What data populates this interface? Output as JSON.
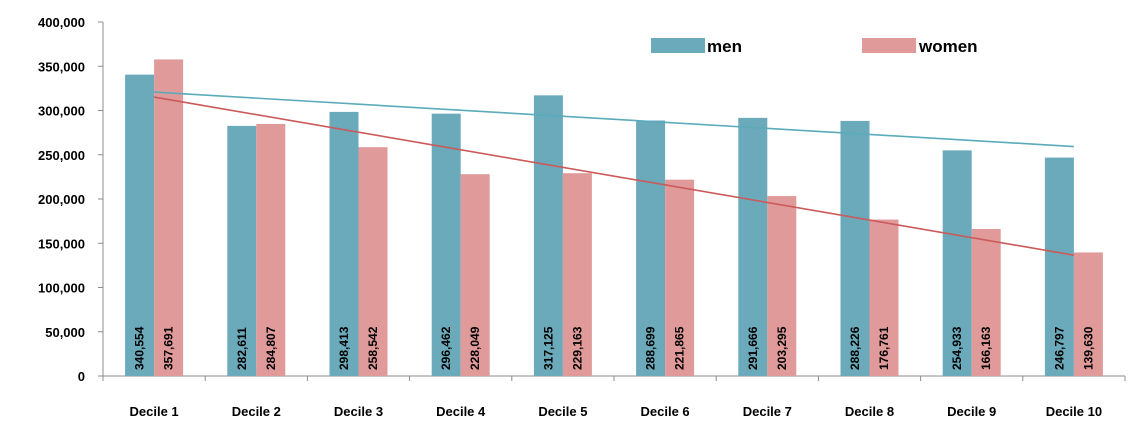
{
  "chart_data": {
    "type": "bar",
    "categories": [
      "Decile 1",
      "Decile 2",
      "Decile 3",
      "Decile 4",
      "Decile 5",
      "Decile 6",
      "Decile 7",
      "Decile 8",
      "Decile 9",
      "Decile 10"
    ],
    "series": [
      {
        "name": "men",
        "color": "#6aaabb",
        "values": [
          340554,
          282611,
          298413,
          296462,
          317125,
          288699,
          291666,
          288226,
          254933,
          246797
        ],
        "labels": [
          "340,554",
          "282,611",
          "298,413",
          "296,462",
          "317,125",
          "288,699",
          "291,666",
          "288,226",
          "254,933",
          "246,797"
        ]
      },
      {
        "name": "women",
        "color": "#e09a9a",
        "values": [
          357691,
          284807,
          258542,
          228049,
          229163,
          221865,
          203295,
          176761,
          166163,
          139630
        ],
        "labels": [
          "357,691",
          "284,807",
          "258,542",
          "228,049",
          "229,163",
          "221,865",
          "203,295",
          "176,761",
          "166,163",
          "139,630"
        ]
      }
    ],
    "trendlines": [
      {
        "series": "men",
        "type": "linear",
        "color": "#5aabbb",
        "start": 320800,
        "end": 259300
      },
      {
        "series": "women",
        "type": "linear",
        "color": "#cc5a5a",
        "start": 315200,
        "end": 136500
      }
    ],
    "ylim": [
      0,
      400000
    ],
    "yticks": [
      0,
      50000,
      100000,
      150000,
      200000,
      250000,
      300000,
      350000,
      400000
    ],
    "ytick_labels": [
      "0",
      "50,000",
      "100,000",
      "150,000",
      "200,000",
      "250,000",
      "300,000",
      "350,000",
      "400,000"
    ],
    "title": "",
    "xlabel": "",
    "ylabel": "",
    "grid": false,
    "legend_position": "top-right"
  }
}
